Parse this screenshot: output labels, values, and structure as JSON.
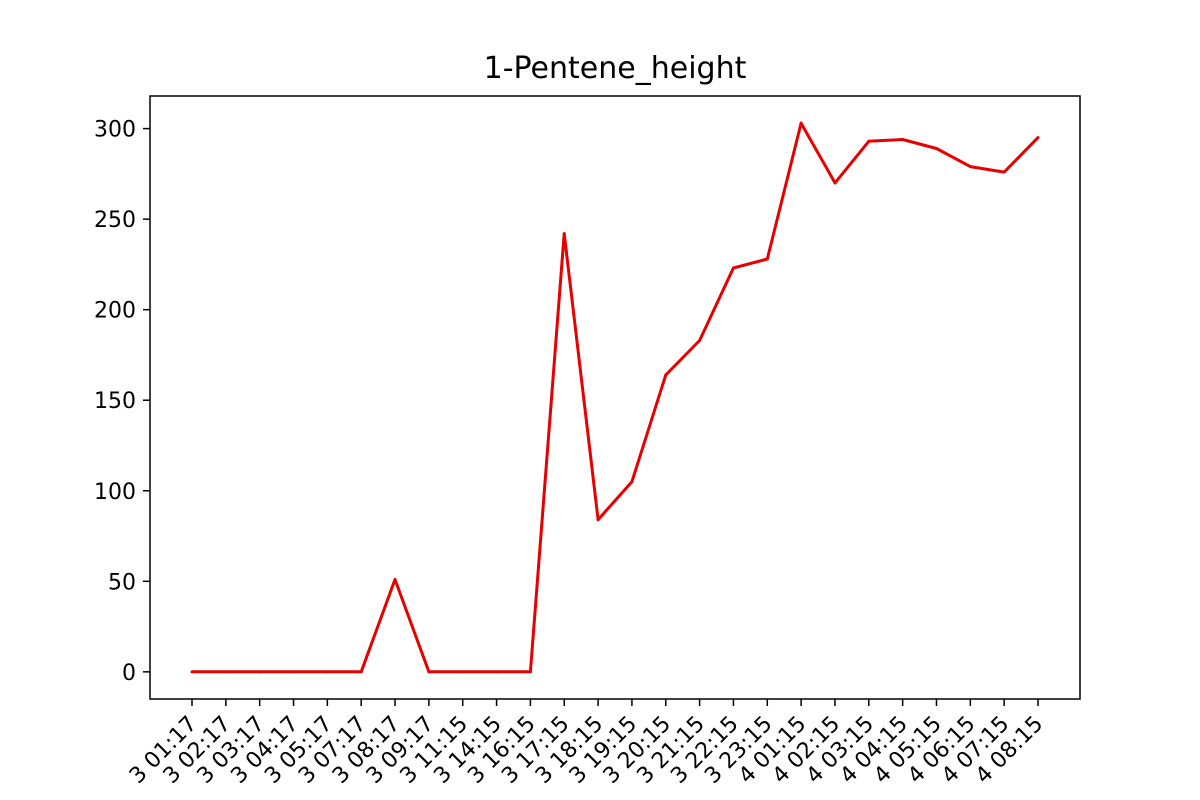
{
  "chart_data": {
    "type": "line",
    "title": "1-Pentene_height",
    "xlabel": "",
    "ylabel": "",
    "grid": false,
    "legend": "none",
    "ylim": [
      -15,
      318
    ],
    "yticks": [
      0,
      50,
      100,
      150,
      200,
      250,
      300
    ],
    "x_tick_labels": [
      "3 01:17",
      "3 02:17",
      "3 03:17",
      "3 04:17",
      "3 05:17",
      "3 07:17",
      "3 08:17",
      "3 09:17",
      "3 11:15",
      "3 14:15",
      "3 16:15",
      "3 17:15",
      "3 18:15",
      "3 19:15",
      "3 20:15",
      "3 21:15",
      "3 22:15",
      "3 23:15",
      "4 01:15",
      "4 02:15",
      "4 03:15",
      "4 04:15",
      "4 05:15",
      "4 06:15",
      "4 07:15",
      "4 08:15"
    ],
    "series": [
      {
        "color": "#e60000",
        "values": [
          0,
          0,
          0,
          0,
          0,
          0,
          51,
          0,
          0,
          0,
          0,
          242,
          84,
          105,
          164,
          183,
          223,
          228,
          303,
          270,
          293,
          294,
          289,
          279,
          276,
          295
        ]
      }
    ]
  }
}
